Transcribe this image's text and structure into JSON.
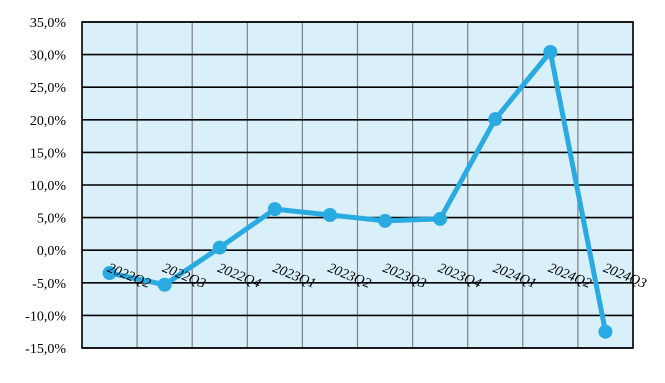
{
  "chart_data": {
    "type": "line",
    "title": "",
    "xlabel": "",
    "ylabel": "",
    "categories": [
      "2022Q2",
      "2022Q3",
      "2022Q4",
      "2023Q1",
      "2023Q2",
      "2023Q3",
      "2023Q4",
      "2024Q1",
      "2024Q2",
      "2024Q3"
    ],
    "series": [
      {
        "values": [
          -3.5,
          -5.3,
          0.4,
          6.3,
          5.4,
          4.5,
          4.8,
          20.1,
          30.4,
          -12.5
        ],
        "color": "#29abe2"
      }
    ],
    "ylim": [
      -15,
      35
    ],
    "yticks": [
      -15,
      -10,
      -5,
      0,
      5,
      10,
      15,
      20,
      25,
      30,
      35
    ],
    "ytick_labels": [
      "-15,0%",
      "-10,0%",
      "-5,0%",
      "0,0%",
      "5,0%",
      "10,0%",
      "15,0%",
      "20,0%",
      "25,0%",
      "30,0%",
      "35,0%"
    ],
    "grid": true,
    "legend": "none",
    "plot_background": "#d9f0fb",
    "gridline_color": "#000000",
    "vertical_grid_color": "#808080"
  }
}
